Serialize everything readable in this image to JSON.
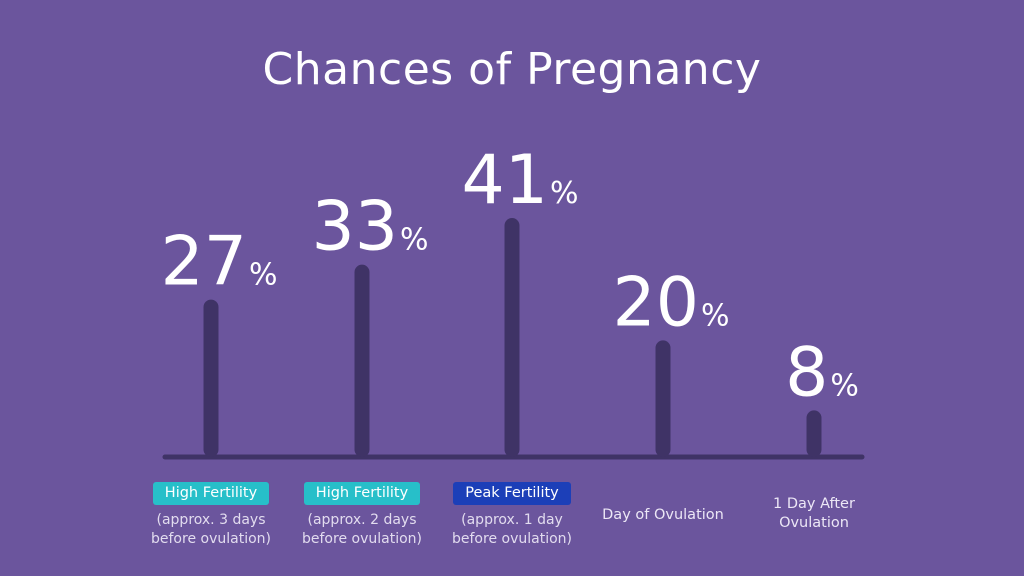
{
  "chart_data": {
    "type": "bar",
    "title": "Chances of Pregnancy",
    "value_suffix": "%",
    "ylim": [
      0,
      41
    ],
    "categories": [
      {
        "badge": "High Fertility",
        "badge_color": "#27bfc9",
        "line1": "(approx. 3 days",
        "line2": "before ovulation)"
      },
      {
        "badge": "High Fertility",
        "badge_color": "#27bfc9",
        "line1": "(approx. 2 days",
        "line2": "before ovulation)"
      },
      {
        "badge": "Peak Fertility",
        "badge_color": "#1c3fb8",
        "line1": "(approx. 1 day",
        "line2": "before ovulation)"
      },
      {
        "badge": "",
        "badge_color": "",
        "line1": "Day of Ovulation",
        "line2": ""
      },
      {
        "badge": "",
        "badge_color": "",
        "line1": "1 Day After",
        "line2": "Ovulation"
      }
    ],
    "values": [
      27,
      33,
      41,
      20,
      8
    ],
    "colors": {
      "background": "#6b559d",
      "bar": "#3f3366",
      "baseline": "#3f3366",
      "text": "#ffffff"
    }
  }
}
